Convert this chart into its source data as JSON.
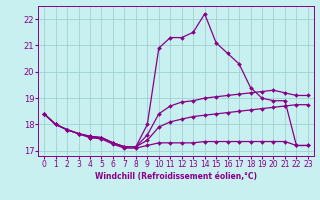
{
  "xlabel": "Windchill (Refroidissement éolien,°C)",
  "bg_color": "#c8f0f0",
  "line_color": "#880088",
  "grid_color": "#99cccc",
  "xlim": [
    -0.5,
    23.5
  ],
  "ylim": [
    16.8,
    22.5
  ],
  "yticks": [
    17,
    18,
    19,
    20,
    21,
    22
  ],
  "xticks": [
    0,
    1,
    2,
    3,
    4,
    5,
    6,
    7,
    8,
    9,
    10,
    11,
    12,
    13,
    14,
    15,
    16,
    17,
    18,
    19,
    20,
    21,
    22,
    23
  ],
  "series": [
    {
      "x": [
        0,
        1,
        2,
        3,
        4,
        5,
        6,
        7,
        8,
        9,
        10,
        11,
        12,
        13,
        14,
        15,
        16,
        17,
        18,
        19,
        20,
        21,
        22,
        23
      ],
      "y": [
        18.4,
        18.0,
        17.8,
        17.65,
        17.5,
        17.45,
        17.25,
        17.1,
        17.1,
        17.2,
        17.3,
        17.3,
        17.3,
        17.3,
        17.35,
        17.35,
        17.35,
        17.35,
        17.35,
        17.35,
        17.35,
        17.35,
        17.2,
        17.2
      ]
    },
    {
      "x": [
        0,
        1,
        2,
        3,
        4,
        5,
        6,
        7,
        8,
        9,
        10,
        11,
        12,
        13,
        14,
        15,
        16,
        17,
        18,
        19,
        20,
        21,
        22,
        23
      ],
      "y": [
        18.4,
        18.0,
        17.8,
        17.65,
        17.5,
        17.5,
        17.3,
        17.15,
        17.15,
        17.4,
        17.9,
        18.1,
        18.2,
        18.3,
        18.35,
        18.4,
        18.45,
        18.5,
        18.55,
        18.6,
        18.65,
        18.7,
        18.75,
        18.75
      ]
    },
    {
      "x": [
        0,
        1,
        2,
        3,
        4,
        5,
        6,
        7,
        8,
        9,
        10,
        11,
        12,
        13,
        14,
        15,
        16,
        17,
        18,
        19,
        20,
        21,
        22,
        23
      ],
      "y": [
        18.4,
        18.0,
        17.8,
        17.65,
        17.55,
        17.5,
        17.3,
        17.15,
        17.15,
        17.6,
        18.4,
        18.7,
        18.85,
        18.9,
        19.0,
        19.05,
        19.1,
        19.15,
        19.2,
        19.25,
        19.3,
        19.2,
        19.1,
        19.1
      ]
    },
    {
      "x": [
        0,
        1,
        2,
        3,
        4,
        5,
        6,
        7,
        8,
        9,
        10,
        11,
        12,
        13,
        14,
        15,
        16,
        17,
        18,
        19,
        20,
        21,
        22,
        23
      ],
      "y": [
        18.4,
        18.0,
        17.8,
        17.65,
        17.55,
        17.5,
        17.3,
        17.15,
        17.15,
        18.0,
        20.9,
        21.3,
        21.3,
        21.5,
        22.2,
        21.1,
        20.7,
        20.3,
        19.4,
        19.0,
        18.9,
        18.9,
        17.2,
        17.2
      ]
    }
  ],
  "marker": "D",
  "markersize": 2.0,
  "linewidth": 0.9,
  "tick_fontsize": 5.5,
  "xlabel_fontsize": 5.5
}
